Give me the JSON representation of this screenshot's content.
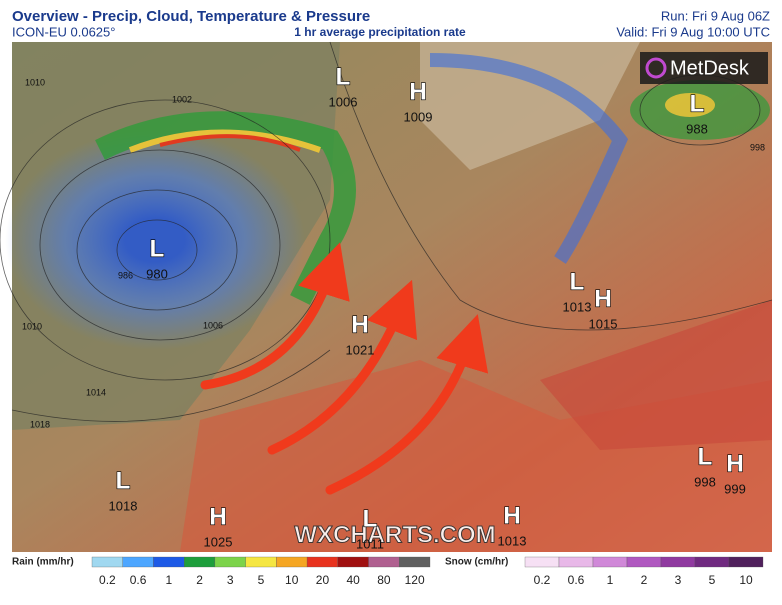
{
  "header": {
    "title": "Overview - Precip, Cloud, Temperature & Pressure",
    "model": "ICON-EU 0.0625°",
    "subtitle": "1 hr average precipitation rate",
    "run": "Run: Fri 9 Aug 06Z",
    "valid": "Valid: Fri 9 Aug 10:00 UTC"
  },
  "logo": "MetDesk",
  "watermark": "WXCHARTS.COM",
  "systems": [
    {
      "letter": "L",
      "value": "1006"
    },
    {
      "letter": "H",
      "value": "1009"
    },
    {
      "letter": "L",
      "value": "988"
    },
    {
      "letter": "L",
      "value": "980"
    },
    {
      "letter": "L",
      "value": "1013"
    },
    {
      "letter": "H",
      "value": "1015"
    },
    {
      "letter": "H",
      "value": "1021"
    },
    {
      "letter": "L",
      "value": "1018"
    },
    {
      "letter": "H",
      "value": "1025"
    },
    {
      "letter": "L",
      "value": "1011"
    },
    {
      "letter": "H",
      "value": "1013"
    },
    {
      "letter": "L",
      "value": "998"
    },
    {
      "letter": "H",
      "value": "999"
    }
  ],
  "isobar_labels": [
    "1010",
    "1002",
    "986",
    "1010",
    "1006",
    "1014",
    "1018",
    "998"
  ],
  "rain_legend": {
    "title": "Rain (mm/hr)",
    "ticks": [
      "0.2",
      "0.6",
      "1",
      "2",
      "3",
      "5",
      "10",
      "20",
      "40",
      "80",
      "120"
    ]
  },
  "snow_legend": {
    "title": "Snow (cm/hr)",
    "ticks": [
      "0.2",
      "0.6",
      "1",
      "2",
      "3",
      "5",
      "10"
    ]
  }
}
